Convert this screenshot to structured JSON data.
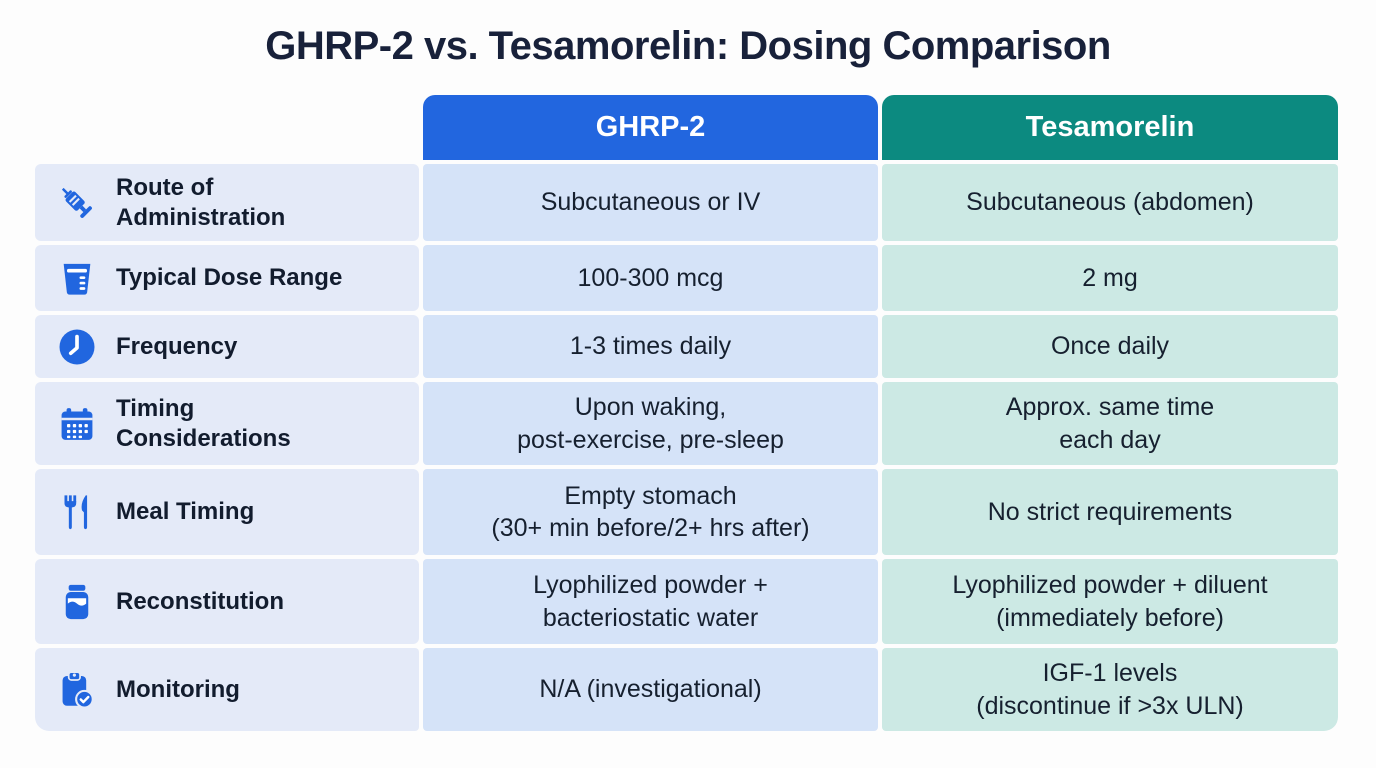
{
  "title": "GHRP-2 vs. Tesamorelin: Dosing Comparison",
  "columns": [
    {
      "id": "ghrp2",
      "label": "GHRP-2",
      "header_color": "#2266df",
      "cell_bg": "#d5e3f8"
    },
    {
      "id": "tesamorelin",
      "label": "Tesamorelin",
      "header_color": "#0c8a80",
      "cell_bg": "#cce9e4"
    }
  ],
  "rows": [
    {
      "icon": "syringe-icon",
      "label": "Route of\nAdministration",
      "ghrp2": "Subcutaneous or IV",
      "tesamorelin": "Subcutaneous (abdomen)"
    },
    {
      "icon": "dose-cup-icon",
      "label": "Typical Dose Range",
      "ghrp2": "100-300 mcg",
      "tesamorelin": "2 mg"
    },
    {
      "icon": "clock-icon",
      "label": "Frequency",
      "ghrp2": "1-3 times daily",
      "tesamorelin": "Once daily"
    },
    {
      "icon": "calendar-icon",
      "label": "Timing\nConsiderations",
      "ghrp2": "Upon waking,\npost-exercise, pre-sleep",
      "tesamorelin": "Approx. same time\neach day"
    },
    {
      "icon": "utensils-icon",
      "label": "Meal Timing",
      "ghrp2": "Empty stomach\n(30+ min before/2+ hrs after)",
      "tesamorelin": "No strict requirements"
    },
    {
      "icon": "bottle-icon",
      "label": "Reconstitution",
      "ghrp2": "Lyophilized powder +\nbacteriostatic water",
      "tesamorelin": "Lyophilized powder + diluent\n(immediately before)"
    },
    {
      "icon": "clipboard-check-icon",
      "label": "Monitoring",
      "ghrp2": "N/A (investigational)",
      "tesamorelin": "IGF-1 levels\n(discontinue if >3x ULN)"
    }
  ],
  "colors": {
    "title_text": "#18213a",
    "label_cell_bg": "#e4eaf8",
    "body_text": "#16202f",
    "icon_blue": "#2166df"
  }
}
